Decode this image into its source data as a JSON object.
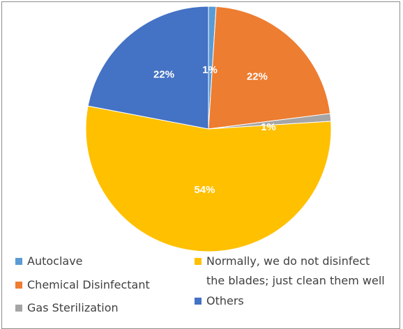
{
  "chart_data": {
    "type": "pie",
    "categories": [
      "Autoclave",
      "Chemical Disinfectant",
      "Gas Sterilization",
      "Normally, we do not disinfect the blades; just clean them well",
      "Others"
    ],
    "values": [
      1,
      22,
      1,
      54,
      22
    ],
    "data_labels": [
      "1%",
      "22%",
      "1%",
      "54%",
      "22%"
    ],
    "colors": [
      "#5B9BD5",
      "#ED7D31",
      "#A5A5A5",
      "#FFC000",
      "#4472C4"
    ],
    "legend": {
      "placement": "bottom",
      "entries": [
        {
          "label": "Autoclave",
          "color": "#5B9BD5"
        },
        {
          "label": "Chemical Disinfectant",
          "color": "#ED7D31"
        },
        {
          "label": "Gas Sterilization",
          "color": "#A5A5A5"
        },
        {
          "label_line1": "Normally, we do not disinfect",
          "label_line2": "the blades; just clean them well",
          "color": "#FFC000"
        },
        {
          "label": "Others",
          "color": "#4472C4"
        }
      ]
    }
  }
}
